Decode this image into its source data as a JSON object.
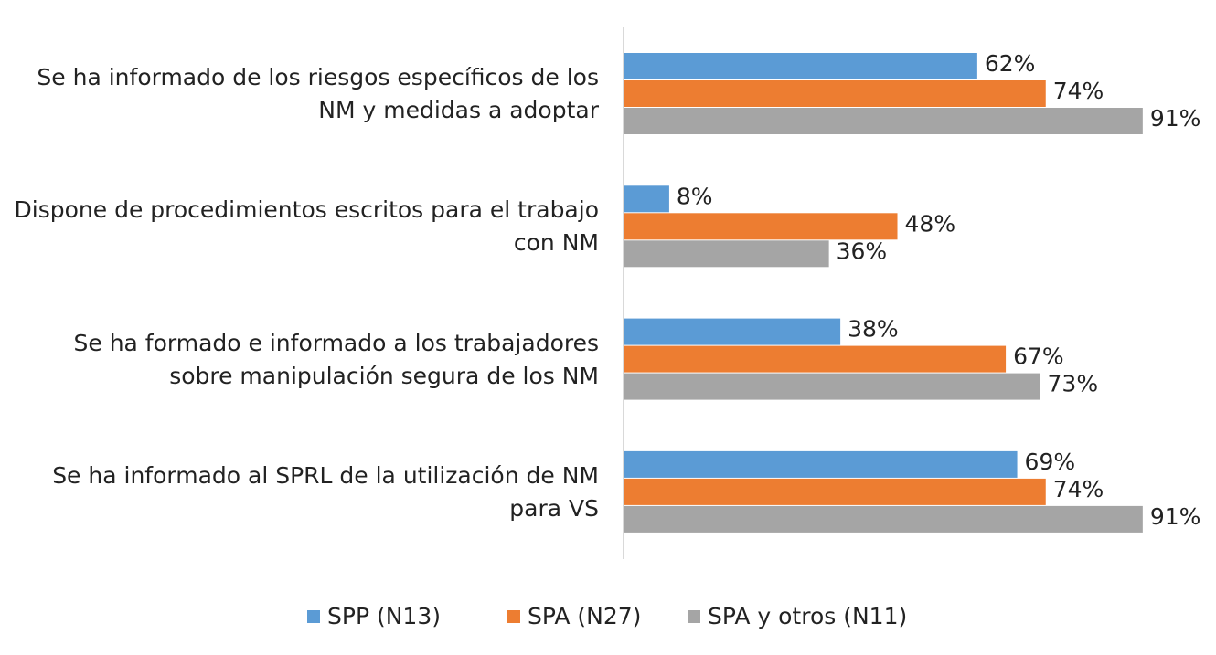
{
  "chart_data": {
    "type": "hbar",
    "categories": [
      "Se ha informado de los riesgos específicos de los NM y medidas a adoptar",
      "Dispone de procedimientos escritos para el trabajo con NM",
      "Se ha formado e informado a los trabajadores sobre manipulación segura de los NM",
      "Se ha informado al SPRL de la utilización de NM para VS"
    ],
    "series": [
      {
        "name": "SPP (N13)",
        "color": "#5b9bd5",
        "values": [
          62,
          8,
          38,
          69
        ],
        "value_labels": [
          "62%",
          "8%",
          "38%",
          "69%"
        ]
      },
      {
        "name": "SPA (N27)",
        "color": "#ed7d31",
        "values": [
          74,
          48,
          67,
          74
        ],
        "value_labels": [
          "74%",
          "48%",
          "67%",
          "74%"
        ]
      },
      {
        "name": "SPA y otros (N11)",
        "color": "#a5a5a5",
        "values": [
          91,
          36,
          73,
          91
        ],
        "value_labels": [
          "91%",
          "36%",
          "73%",
          "91%"
        ]
      }
    ],
    "xlim": [
      0,
      100
    ],
    "legend": "bottom"
  }
}
